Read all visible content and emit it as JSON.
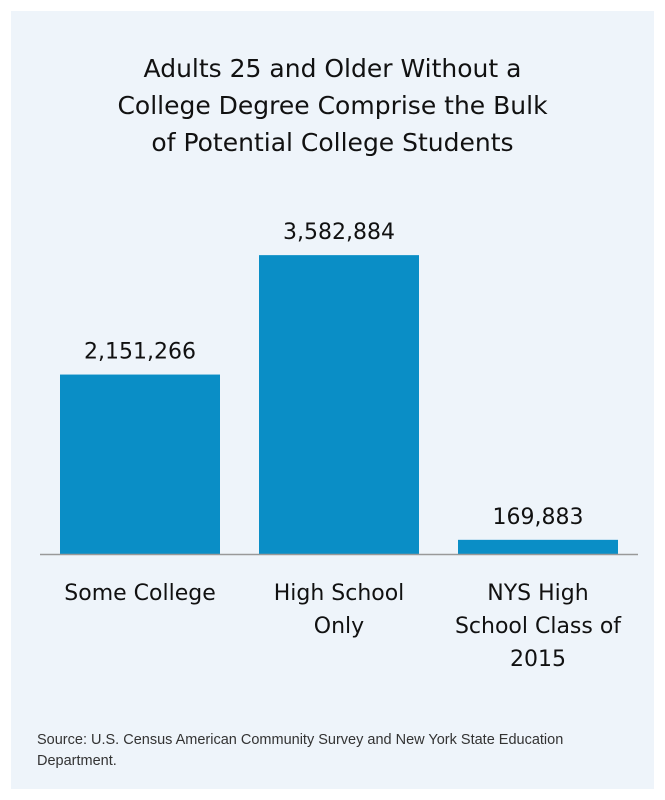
{
  "chart_data": {
    "type": "bar",
    "title_lines": [
      "Adults 25 and Older Without a",
      "College Degree Comprise the Bulk",
      "of Potential College Students"
    ],
    "categories": [
      "Some College",
      "High School Only",
      "NYS High School Class of 2015"
    ],
    "category_lines": [
      [
        "Some College"
      ],
      [
        "High School",
        "Only"
      ],
      [
        "NYS High",
        "School Class of",
        "2015"
      ]
    ],
    "values": [
      2151266,
      3582884,
      169883
    ],
    "value_labels": [
      "2,151,266",
      "3,582,884",
      "169,883"
    ],
    "ylim": [
      0,
      4100000
    ],
    "grid": false,
    "legend": "none"
  },
  "colors": {
    "bar": "#0a8ec6",
    "panel_background": "#eef4fa",
    "axis": "#999999",
    "text": "#111111"
  },
  "source": "Source: U.S. Census American Community Survey and New York State Education Department."
}
